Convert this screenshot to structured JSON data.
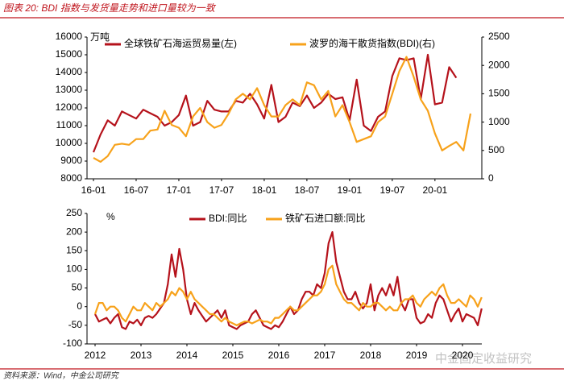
{
  "page_title": "图表 20: BDI 指数与发货量走势和进口量较为一致",
  "source": "资料来源：Wind，中金公司研究",
  "watermark": "中金固定收益研究",
  "chart_data": [
    {
      "type": "line",
      "y_unit": "万吨",
      "categories": [
        "16-01",
        null,
        null,
        null,
        null,
        null,
        "16-07",
        null,
        null,
        null,
        null,
        null,
        "17-01",
        null,
        null,
        null,
        null,
        null,
        "17-07",
        null,
        null,
        null,
        null,
        null,
        "18-01",
        null,
        null,
        null,
        null,
        null,
        "18-07",
        null,
        null,
        null,
        null,
        null,
        "19-01",
        null,
        null,
        null,
        null,
        null,
        "19-07",
        null,
        null,
        null,
        null,
        null,
        "20-01",
        null,
        null,
        null,
        null,
        null
      ],
      "series": [
        {
          "name": "全球铁矿石海运贸易量(左)",
          "color": "#b5121b",
          "axis": "y",
          "values": [
            9500,
            10500,
            11300,
            11000,
            11800,
            11600,
            11400,
            11900,
            11700,
            11500,
            11000,
            11200,
            11600,
            12700,
            11000,
            11200,
            12400,
            11900,
            11800,
            11800,
            12400,
            12300,
            12800,
            12200,
            11400,
            13300,
            11200,
            11500,
            12300,
            12100,
            12700,
            12000,
            12300,
            12800,
            12500,
            12600,
            11300,
            13600,
            11000,
            10700,
            11500,
            11800,
            13800,
            14800,
            14700,
            14800,
            12500,
            15000,
            12200,
            12300,
            14300,
            13700,
            null,
            null
          ]
        },
        {
          "name": "波罗的海干散货指数(BDI)(右)",
          "color": "#f7a21b",
          "axis": "y2",
          "values": [
            370,
            300,
            400,
            600,
            620,
            600,
            700,
            700,
            850,
            870,
            1200,
            950,
            900,
            750,
            1100,
            1250,
            1000,
            900,
            950,
            1150,
            1400,
            1500,
            1400,
            1600,
            1300,
            1100,
            1100,
            1300,
            1400,
            1300,
            1700,
            1650,
            1400,
            1550,
            1100,
            1300,
            1000,
            650,
            700,
            750,
            1000,
            1100,
            1500,
            1900,
            2150,
            1800,
            1400,
            1200,
            800,
            500,
            580,
            650,
            500,
            1150
          ]
        }
      ],
      "ylim": [
        8000,
        16000
      ],
      "yticks": [
        8000,
        9000,
        10000,
        11000,
        12000,
        13000,
        14000,
        15000,
        16000
      ],
      "y2lim": [
        0,
        2500
      ],
      "y2ticks": [
        0,
        500,
        1000,
        1500,
        2000,
        2500
      ]
    },
    {
      "type": "line",
      "y_unit": "%",
      "categories": [
        "2012",
        null,
        null,
        null,
        null,
        null,
        null,
        null,
        null,
        null,
        null,
        null,
        "2013",
        null,
        null,
        null,
        null,
        null,
        null,
        null,
        null,
        null,
        null,
        null,
        "2014",
        null,
        null,
        null,
        null,
        null,
        null,
        null,
        null,
        null,
        null,
        null,
        "2015",
        null,
        null,
        null,
        null,
        null,
        null,
        null,
        null,
        null,
        null,
        null,
        "2016",
        null,
        null,
        null,
        null,
        null,
        null,
        null,
        null,
        null,
        null,
        null,
        "2017",
        null,
        null,
        null,
        null,
        null,
        null,
        null,
        null,
        null,
        null,
        null,
        "2018",
        null,
        null,
        null,
        null,
        null,
        null,
        null,
        null,
        null,
        null,
        null,
        "2019",
        null,
        null,
        null,
        null,
        null,
        null,
        null,
        null,
        null,
        null,
        null,
        "2020",
        null,
        null,
        null,
        null,
        null
      ],
      "series": [
        {
          "name": "BDI:同比",
          "color": "#b5121b",
          "axis": "y",
          "values": [
            -20,
            -40,
            -35,
            -30,
            -45,
            -30,
            -20,
            -55,
            -60,
            -40,
            -45,
            -35,
            -50,
            -30,
            -25,
            -30,
            -20,
            -5,
            10,
            60,
            140,
            80,
            155,
            100,
            20,
            -20,
            10,
            -10,
            -25,
            -40,
            -30,
            -20,
            -10,
            -30,
            -10,
            -50,
            -55,
            -60,
            -50,
            -45,
            -40,
            -20,
            -10,
            -30,
            -50,
            -55,
            -60,
            -50,
            -55,
            -40,
            -20,
            0,
            -20,
            -10,
            20,
            40,
            40,
            30,
            60,
            50,
            90,
            170,
            200,
            120,
            80,
            40,
            20,
            20,
            40,
            10,
            -5,
            10,
            60,
            -10,
            30,
            50,
            30,
            60,
            30,
            80,
            10,
            -10,
            20,
            20,
            -30,
            -45,
            -40,
            -20,
            -30,
            10,
            30,
            20,
            -10,
            -40,
            -20,
            -5,
            -40,
            -20,
            -25,
            -30,
            -50,
            -5
          ]
        },
        {
          "name": "铁矿石进口额:同比",
          "color": "#f7a21b",
          "axis": "y",
          "values": [
            -20,
            10,
            10,
            -10,
            0,
            0,
            -10,
            -30,
            -40,
            -20,
            0,
            -10,
            -10,
            10,
            0,
            -10,
            10,
            0,
            10,
            20,
            40,
            30,
            50,
            40,
            20,
            40,
            20,
            10,
            0,
            -10,
            -20,
            -20,
            -30,
            -40,
            -30,
            -40,
            -45,
            -50,
            -45,
            -40,
            -40,
            -45,
            -40,
            -35,
            -40,
            -40,
            -45,
            -30,
            -30,
            -20,
            -10,
            0,
            -10,
            -10,
            0,
            10,
            20,
            30,
            30,
            40,
            60,
            100,
            110,
            60,
            40,
            20,
            10,
            10,
            0,
            -10,
            10,
            0,
            0,
            10,
            10,
            0,
            -10,
            0,
            -10,
            -10,
            10,
            20,
            20,
            30,
            10,
            0,
            20,
            30,
            40,
            30,
            50,
            60,
            30,
            10,
            10,
            20,
            10,
            0,
            30,
            20,
            0,
            25
          ]
        }
      ],
      "ylim": [
        -100,
        250
      ],
      "yticks": [
        -100,
        -50,
        0,
        50,
        100,
        150,
        200,
        250
      ]
    }
  ]
}
